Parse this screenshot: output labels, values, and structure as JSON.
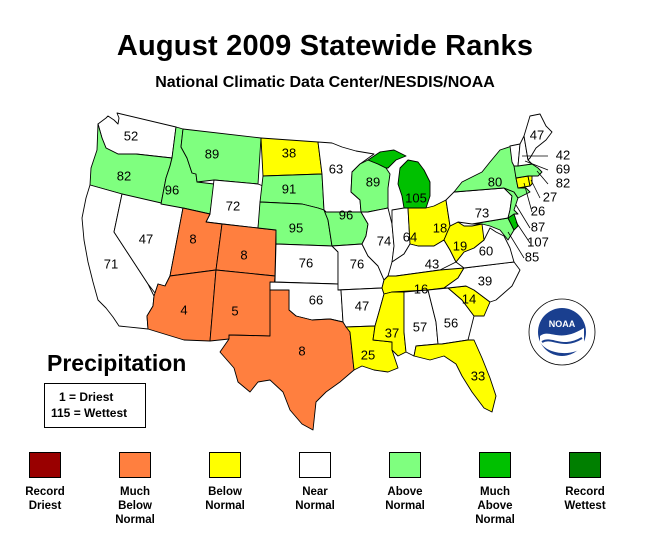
{
  "title": "August 2009 Statewide Ranks",
  "subtitle": "National Climatic Data Center/NESDIS/NOAA",
  "variable": "Precipitation",
  "key": {
    "driest": "1 = Driest",
    "wettest": "115 = Wettest"
  },
  "logo_text": "NOAA",
  "colors": {
    "record_driest": "#990000",
    "much_below": "#ff7f3f",
    "below": "#ffff00",
    "near": "#ffffff",
    "above": "#7fff7f",
    "much_above": "#00c000",
    "record_wettest": "#007f00"
  },
  "legend": [
    {
      "label": "Record\nDriest",
      "color": "#990000"
    },
    {
      "label": "Much\nBelow\nNormal",
      "color": "#ff7f3f"
    },
    {
      "label": "Below\nNormal",
      "color": "#ffff00"
    },
    {
      "label": "Near\nNormal",
      "color": "#ffffff"
    },
    {
      "label": "Above\nNormal",
      "color": "#7fff7f"
    },
    {
      "label": "Much\nAbove\nNormal",
      "color": "#00c000"
    },
    {
      "label": "Record\nWettest",
      "color": "#007f00"
    }
  ],
  "states": {
    "WA": {
      "rank": "52",
      "category": "near"
    },
    "OR": {
      "rank": "82",
      "category": "above"
    },
    "CA": {
      "rank": "71",
      "category": "near"
    },
    "ID": {
      "rank": "96",
      "category": "above"
    },
    "NV": {
      "rank": "47",
      "category": "near"
    },
    "MT": {
      "rank": "89",
      "category": "above"
    },
    "WY": {
      "rank": "72",
      "category": "near"
    },
    "UT": {
      "rank": "8",
      "category": "much_below"
    },
    "CO": {
      "rank": "8",
      "category": "much_below"
    },
    "AZ": {
      "rank": "4",
      "category": "much_below"
    },
    "NM": {
      "rank": "5",
      "category": "much_below"
    },
    "ND": {
      "rank": "38",
      "category": "below"
    },
    "SD": {
      "rank": "91",
      "category": "above"
    },
    "NE": {
      "rank": "95",
      "category": "above"
    },
    "KS": {
      "rank": "76",
      "category": "near"
    },
    "OK": {
      "rank": "66",
      "category": "near"
    },
    "TX": {
      "rank": "8",
      "category": "much_below"
    },
    "MN": {
      "rank": "63",
      "category": "near"
    },
    "IA": {
      "rank": "96",
      "category": "above"
    },
    "MO": {
      "rank": "76",
      "category": "near"
    },
    "AR": {
      "rank": "47",
      "category": "near"
    },
    "LA": {
      "rank": "25",
      "category": "below"
    },
    "WI": {
      "rank": "89",
      "category": "above"
    },
    "IL": {
      "rank": "74",
      "category": "near"
    },
    "MI": {
      "rank": "105",
      "category": "much_above"
    },
    "IN": {
      "rank": "64",
      "category": "near"
    },
    "OH": {
      "rank": "18",
      "category": "below"
    },
    "KY": {
      "rank": "43",
      "category": "near"
    },
    "TN": {
      "rank": "16",
      "category": "below"
    },
    "MS": {
      "rank": "37",
      "category": "below"
    },
    "AL": {
      "rank": "57",
      "category": "near"
    },
    "GA": {
      "rank": "56",
      "category": "near"
    },
    "FL": {
      "rank": "33",
      "category": "below"
    },
    "SC": {
      "rank": "14",
      "category": "below"
    },
    "NC": {
      "rank": "39",
      "category": "near"
    },
    "VA": {
      "rank": "60",
      "category": "near"
    },
    "WV": {
      "rank": "19",
      "category": "below"
    },
    "PA": {
      "rank": "73",
      "category": "near"
    },
    "NY": {
      "rank": "80",
      "category": "above"
    },
    "VT": {
      "rank": "42",
      "category": "near"
    },
    "ME": {
      "rank": "47",
      "category": "near"
    },
    "NH": {
      "rank": "69",
      "category": "near"
    },
    "MA": {
      "rank": "82",
      "category": "above"
    },
    "RI": {
      "rank": "27",
      "category": "below"
    },
    "CT": {
      "rank": "26",
      "category": "below"
    },
    "NJ": {
      "rank": "87",
      "category": "above"
    },
    "DE": {
      "rank": "107",
      "category": "much_above"
    },
    "MD": {
      "rank": "85",
      "category": "above"
    }
  }
}
